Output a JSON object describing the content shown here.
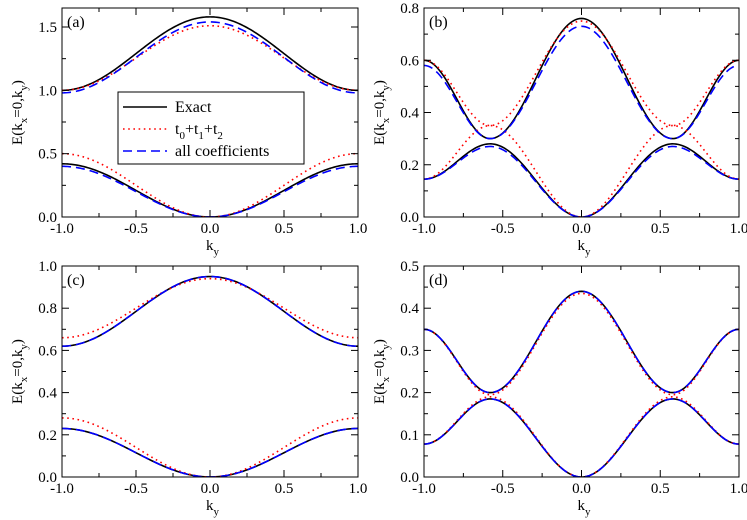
{
  "chart_data": [
    {
      "type": "line",
      "panel_label": "(a)",
      "xlabel_base": "k",
      "xlabel_sub": "y",
      "ylabel_parts": [
        "E(k",
        "x",
        "=0,k",
        "y",
        ")"
      ],
      "xlim": [
        -1.0,
        1.0
      ],
      "ylim": [
        0.0,
        1.65
      ],
      "xticks": [
        -1.0,
        -0.5,
        0.0,
        0.5,
        1.0
      ],
      "xtick_labels": [
        "-1.0",
        "-0.5",
        "0.0",
        "0.5",
        "1.0"
      ],
      "yticks": [
        0.0,
        0.5,
        1.0,
        1.5
      ],
      "ytick_labels": [
        "0.0",
        "0.5",
        "1.0",
        "1.5"
      ],
      "grid": false,
      "legend": {
        "position": "center-left",
        "entries": [
          {
            "label_parts": [
              "Exact"
            ],
            "series": "Exact"
          },
          {
            "label_parts": [
              "t",
              "0",
              "+t",
              "1",
              "+t",
              "2"
            ],
            "series": "t0+t1+t2"
          },
          {
            "label_parts": [
              "all coefficients"
            ],
            "series": "all coefficients"
          }
        ]
      },
      "series": [
        {
          "name": "Exact",
          "color": "#000000",
          "dash": "solid",
          "band": "upper",
          "shape": "cosbump",
          "y_edge": 1.0,
          "y_center": 1.58
        },
        {
          "name": "t0+t1+t2",
          "color": "#ff0000",
          "dash": "dotted",
          "band": "upper",
          "shape": "cosbump",
          "y_edge": 1.0,
          "y_center": 1.51
        },
        {
          "name": "all coefficients",
          "color": "#0000ff",
          "dash": "dashed",
          "band": "upper",
          "shape": "cosbump",
          "y_edge": 0.98,
          "y_center": 1.54
        },
        {
          "name": "Exact",
          "color": "#000000",
          "dash": "solid",
          "band": "lower",
          "shape": "cosbump",
          "y_edge": 0.42,
          "y_center": 0.0
        },
        {
          "name": "t0+t1+t2",
          "color": "#ff0000",
          "dash": "dotted",
          "band": "lower",
          "shape": "cosbump",
          "y_edge": 0.5,
          "y_center": 0.0
        },
        {
          "name": "all coefficients",
          "color": "#0000ff",
          "dash": "dashed",
          "band": "lower",
          "shape": "cosbump",
          "y_edge": 0.4,
          "y_center": 0.0
        }
      ]
    },
    {
      "type": "line",
      "panel_label": "(b)",
      "xlabel_base": "k",
      "xlabel_sub": "y",
      "ylabel_parts": [
        "E(k",
        "x",
        "=0,k",
        "y",
        ")"
      ],
      "xlim": [
        -1.0,
        1.0
      ],
      "ylim": [
        0.0,
        0.8
      ],
      "xticks": [
        -1.0,
        -0.5,
        0.0,
        0.5,
        1.0
      ],
      "xtick_labels": [
        "-1.0",
        "-0.5",
        "0.0",
        "0.5",
        "1.0"
      ],
      "yticks": [
        0.0,
        0.2,
        0.4,
        0.6,
        0.8
      ],
      "ytick_labels": [
        "0.0",
        "0.2",
        "0.4",
        "0.6",
        "0.8"
      ],
      "grid": false,
      "crossing_ky": 0.58,
      "series": [
        {
          "name": "Exact",
          "color": "#000000",
          "dash": "solid",
          "shape": "crossing",
          "y_edge": 0.6,
          "y_center": 0.76,
          "y_gap_hi": 0.3,
          "y_gap_lo": 0.28,
          "y_low_edge": 0.145,
          "y_low_center": 0.0
        },
        {
          "name": "t0+t1+t2",
          "color": "#ff0000",
          "dash": "dotted",
          "shape": "crossing",
          "y_edge": 0.6,
          "y_center": 0.75,
          "y_gap_hi": 0.35,
          "y_gap_lo": 0.35,
          "y_low_edge": 0.145,
          "y_low_center": 0.0
        },
        {
          "name": "all coefficients",
          "color": "#0000ff",
          "dash": "dashed",
          "shape": "crossing",
          "y_edge": 0.58,
          "y_center": 0.73,
          "y_gap_hi": 0.3,
          "y_gap_lo": 0.27,
          "y_low_edge": 0.145,
          "y_low_center": 0.0
        }
      ]
    },
    {
      "type": "line",
      "panel_label": "(c)",
      "xlabel_base": "k",
      "xlabel_sub": "y",
      "ylabel_parts": [
        "E(k",
        "x",
        "=0,k",
        "y",
        ")"
      ],
      "xlim": [
        -1.0,
        1.0
      ],
      "ylim": [
        0.0,
        1.0
      ],
      "xticks": [
        -1.0,
        -0.5,
        0.0,
        0.5,
        1.0
      ],
      "xtick_labels": [
        "-1.0",
        "-0.5",
        "0.0",
        "0.5",
        "1.0"
      ],
      "yticks": [
        0.0,
        0.2,
        0.4,
        0.6,
        0.8,
        1.0
      ],
      "ytick_labels": [
        "0.0",
        "0.2",
        "0.4",
        "0.6",
        "0.8",
        "1.0"
      ],
      "grid": false,
      "series": [
        {
          "name": "Exact",
          "color": "#000000",
          "dash": "solid",
          "band": "upper",
          "shape": "cosbump",
          "y_edge": 0.62,
          "y_center": 0.95
        },
        {
          "name": "t0+t1+t2",
          "color": "#ff0000",
          "dash": "dotted",
          "band": "upper",
          "shape": "cosbump",
          "y_edge": 0.66,
          "y_center": 0.94
        },
        {
          "name": "all coefficients",
          "color": "#0000ff",
          "dash": "dashed",
          "band": "upper",
          "shape": "cosbump",
          "y_edge": 0.62,
          "y_center": 0.95
        },
        {
          "name": "Exact",
          "color": "#000000",
          "dash": "solid",
          "band": "lower",
          "shape": "cosbump",
          "y_edge": 0.23,
          "y_center": 0.0
        },
        {
          "name": "t0+t1+t2",
          "color": "#ff0000",
          "dash": "dotted",
          "band": "lower",
          "shape": "cosbump",
          "y_edge": 0.28,
          "y_center": 0.0
        },
        {
          "name": "all coefficients",
          "color": "#0000ff",
          "dash": "dashed",
          "band": "lower",
          "shape": "cosbump",
          "y_edge": 0.23,
          "y_center": 0.0
        }
      ]
    },
    {
      "type": "line",
      "panel_label": "(d)",
      "xlabel_base": "k",
      "xlabel_sub": "y",
      "ylabel_parts": [
        "E(k",
        "x",
        "=0,k",
        "y",
        ")"
      ],
      "xlim": [
        -1.0,
        1.0
      ],
      "ylim": [
        0.0,
        0.5
      ],
      "xticks": [
        -1.0,
        -0.5,
        0.0,
        0.5,
        1.0
      ],
      "xtick_labels": [
        "-1.0",
        "-0.5",
        "0.0",
        "0.5",
        "1.0"
      ],
      "yticks": [
        0.0,
        0.1,
        0.2,
        0.3,
        0.4,
        0.5
      ],
      "ytick_labels": [
        "0.0",
        "0.1",
        "0.2",
        "0.3",
        "0.4",
        "0.5"
      ],
      "grid": false,
      "crossing_ky": 0.58,
      "series": [
        {
          "name": "Exact",
          "color": "#000000",
          "dash": "solid",
          "shape": "crossing",
          "y_edge": 0.35,
          "y_center": 0.44,
          "y_gap_hi": 0.2,
          "y_gap_lo": 0.185,
          "y_low_edge": 0.078,
          "y_low_center": 0.0
        },
        {
          "name": "t0+t1+t2",
          "color": "#ff0000",
          "dash": "dotted",
          "shape": "crossing",
          "y_edge": 0.35,
          "y_center": 0.435,
          "y_gap_hi": 0.195,
          "y_gap_lo": 0.19,
          "y_low_edge": 0.078,
          "y_low_center": 0.0
        },
        {
          "name": "all coefficients",
          "color": "#0000ff",
          "dash": "dashed",
          "shape": "crossing",
          "y_edge": 0.35,
          "y_center": 0.44,
          "y_gap_hi": 0.2,
          "y_gap_lo": 0.185,
          "y_low_edge": 0.078,
          "y_low_center": 0.0
        }
      ]
    }
  ]
}
